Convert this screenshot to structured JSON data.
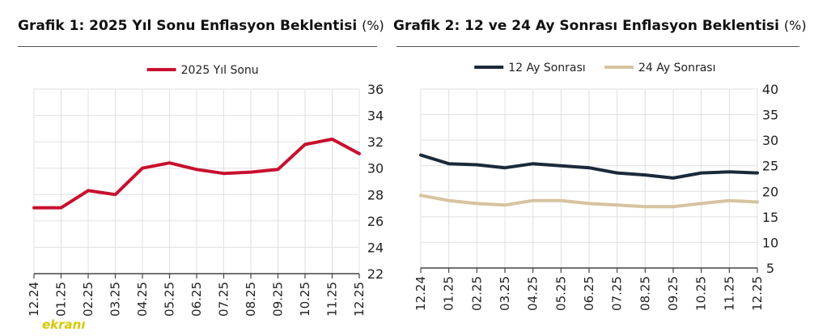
{
  "charts": [
    {
      "title": "Grafik 1: 2025 Yıl Sonu Enflasyon Beklentisi",
      "unit": "(%)"
    },
    {
      "title": "Grafik 2: 12 ve 24 Ay Sonrası Enflasyon Beklentisi",
      "unit": "(%)"
    }
  ],
  "watermark": "ekranı",
  "colors": {
    "red": "#c8102e",
    "navy": "#1b2a3a",
    "tan": "#d6c3a0",
    "grid": "#e0e0e0",
    "axis": "#444444"
  },
  "chart_data": [
    {
      "type": "line",
      "title": "Grafik 1: 2025 Yıl Sonu Enflasyon Beklentisi (%)",
      "categories": [
        "12.24",
        "01.25",
        "02.25",
        "03.25",
        "04.25",
        "05.25",
        "06.25",
        "07.25",
        "08.25",
        "09.25",
        "10.25",
        "11.25",
        "12.25"
      ],
      "series": [
        {
          "name": "2025 Yıl Sonu",
          "color": "#c8102e",
          "values": [
            27.0,
            27.0,
            28.3,
            28.0,
            30.0,
            30.4,
            29.9,
            29.6,
            29.7,
            29.9,
            31.8,
            32.2,
            31.1
          ]
        }
      ],
      "ylim": [
        22,
        36
      ],
      "yticks": [
        22,
        24,
        26,
        28,
        30,
        32,
        34,
        36
      ],
      "y_axis_side": "right",
      "legend_position": "top-center",
      "grid": true
    },
    {
      "type": "line",
      "title": "Grafik 2: 12 ve 24 Ay Sonrası Enflasyon Beklentisi (%)",
      "categories": [
        "12.24",
        "01.25",
        "02.25",
        "03.25",
        "04.25",
        "05.25",
        "06.25",
        "07.25",
        "08.25",
        "09.25",
        "10.25",
        "11.25",
        "12.25"
      ],
      "series": [
        {
          "name": "12 Ay Sonrası",
          "color": "#1b2a3a",
          "values": [
            27.1,
            25.4,
            25.2,
            24.6,
            25.4,
            25.0,
            24.6,
            23.6,
            23.2,
            22.6,
            23.6,
            23.8,
            23.6
          ]
        },
        {
          "name": "24 Ay Sonrası",
          "color": "#d6c3a0",
          "values": [
            19.2,
            18.2,
            17.6,
            17.3,
            18.2,
            18.2,
            17.6,
            17.3,
            17.0,
            17.0,
            17.6,
            18.2,
            17.9
          ]
        }
      ],
      "ylim": [
        5,
        40
      ],
      "yticks": [
        5,
        10,
        15,
        20,
        25,
        30,
        35,
        40
      ],
      "y_axis_side": "right",
      "legend_position": "top-center",
      "grid": true
    }
  ]
}
